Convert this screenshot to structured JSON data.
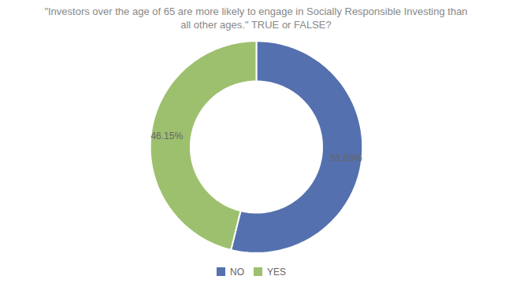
{
  "chart_data": {
    "type": "pie",
    "title": "\"Investors over the age of 65 are more likely to engage in Socially Responsible Investing than\nall other ages.\" TRUE or FALSE?",
    "categories": [
      "NO",
      "YES"
    ],
    "values": [
      53.85,
      46.15
    ],
    "value_labels": [
      "53.85%",
      "46.15%"
    ],
    "colors": [
      "#5470ae",
      "#9dc06e"
    ],
    "data_labels": true,
    "legend": "bottom"
  }
}
